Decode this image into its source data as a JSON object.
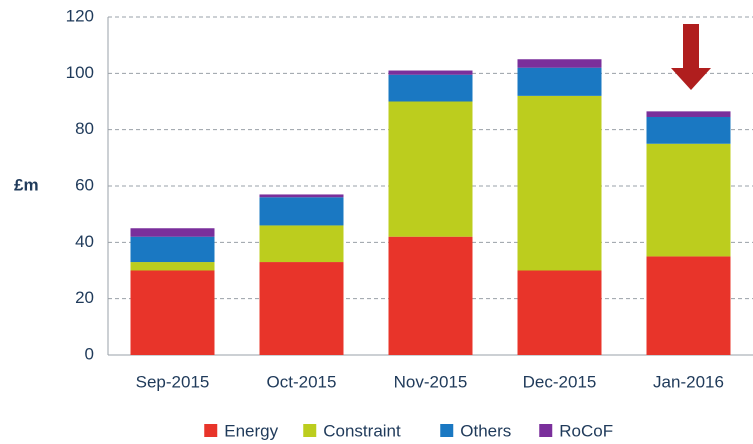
{
  "chart_data": {
    "type": "stacked_bar",
    "ylabel": "£m",
    "categories": [
      "Sep-2015",
      "Oct-2015",
      "Nov-2015",
      "Dec-2015",
      "Jan-2016"
    ],
    "series": [
      {
        "name": "Energy",
        "color": "#e8342a",
        "values": [
          30,
          33,
          42,
          30,
          35
        ]
      },
      {
        "name": "Constraint",
        "color": "#bccd1e",
        "values": [
          3,
          13,
          48,
          62,
          40
        ]
      },
      {
        "name": "Others",
        "color": "#1a78c2",
        "values": [
          9,
          10,
          9.5,
          10,
          9.5
        ]
      },
      {
        "name": "RoCoF",
        "color": "#7a2f9b",
        "values": [
          3,
          1,
          1.5,
          3,
          2
        ]
      }
    ],
    "ylim": [
      0,
      120
    ],
    "yticks": [
      0,
      20,
      40,
      60,
      80,
      100,
      120
    ],
    "grid": true
  }
}
